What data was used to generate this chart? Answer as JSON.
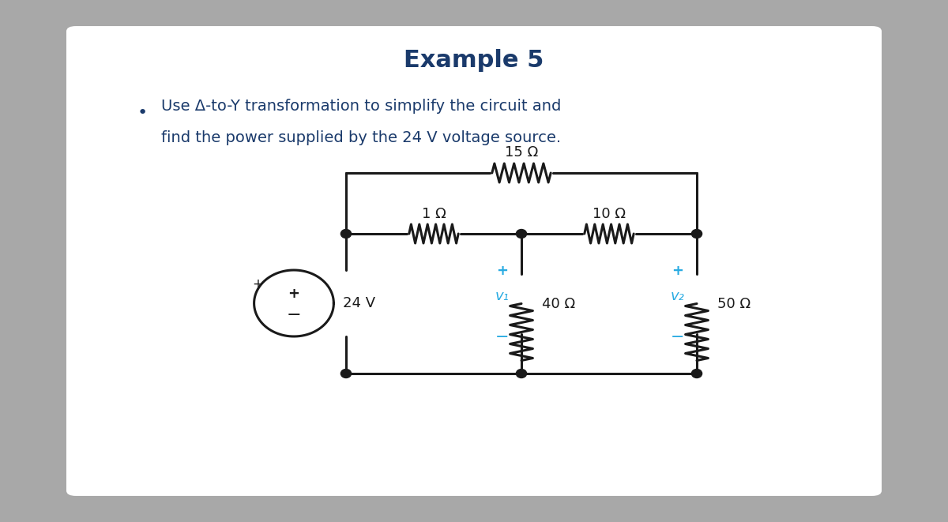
{
  "title": "Example 5",
  "title_color": "#1a3a6b",
  "title_fontsize": 22,
  "title_fontweight": "bold",
  "bullet_text_line1": "Use Δ-to-Y transformation to simplify the circuit and",
  "bullet_text_line2": "find the power supplied by the 24 V voltage source.",
  "text_color": "#1a3a6b",
  "text_fontsize": 14,
  "bg_outer": "#a8a8a8",
  "bg_inner": "#ffffff",
  "circuit_color": "#1a1a1a",
  "cyan_color": "#29abe2",
  "resistor_15": "15 Ω",
  "resistor_1": "1 Ω",
  "resistor_10": "10 Ω",
  "resistor_40": "40 Ω",
  "resistor_50": "50 Ω",
  "source_label": "24 V",
  "v1_label": "v₁",
  "v2_label": "v₂",
  "lw": 2.2,
  "dot_r": 0.055
}
